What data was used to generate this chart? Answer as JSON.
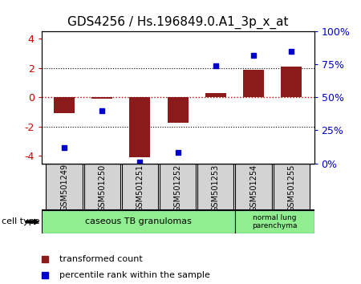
{
  "title": "GDS4256 / Hs.196849.0.A1_3p_x_at",
  "samples": [
    "GSM501249",
    "GSM501250",
    "GSM501251",
    "GSM501252",
    "GSM501253",
    "GSM501254",
    "GSM501255"
  ],
  "bar_values": [
    -1.1,
    -0.07,
    -4.1,
    -1.75,
    0.3,
    1.85,
    2.1
  ],
  "percentile_values": [
    12,
    40,
    1,
    8,
    74,
    82,
    85
  ],
  "bar_color": "#8B1A1A",
  "dot_color": "#0000CC",
  "ylim_left": [
    -4.5,
    4.5
  ],
  "ylim_right": [
    0,
    100
  ],
  "yticks_left": [
    -4,
    -2,
    0,
    2,
    4
  ],
  "yticks_right": [
    0,
    25,
    50,
    75,
    100
  ],
  "ytick_labels_right": [
    "0%",
    "25%",
    "50%",
    "75%",
    "100%"
  ],
  "group1_label": "caseous TB granulomas",
  "group2_label": "normal lung\nparenchyma",
  "group1_count": 5,
  "cell_type_label": "cell type",
  "legend_bar_label": "transformed count",
  "legend_dot_label": "percentile rank within the sample",
  "bg_color": "#ffffff",
  "plot_bg_color": "#ffffff",
  "group_color": "#90EE90",
  "sample_box_color": "#d3d3d3",
  "hline_color": "#CC0000",
  "grid_color": "#000000",
  "title_fontsize": 11,
  "tick_fontsize": 9,
  "sample_fontsize": 7,
  "group_fontsize": 8,
  "legend_fontsize": 8
}
